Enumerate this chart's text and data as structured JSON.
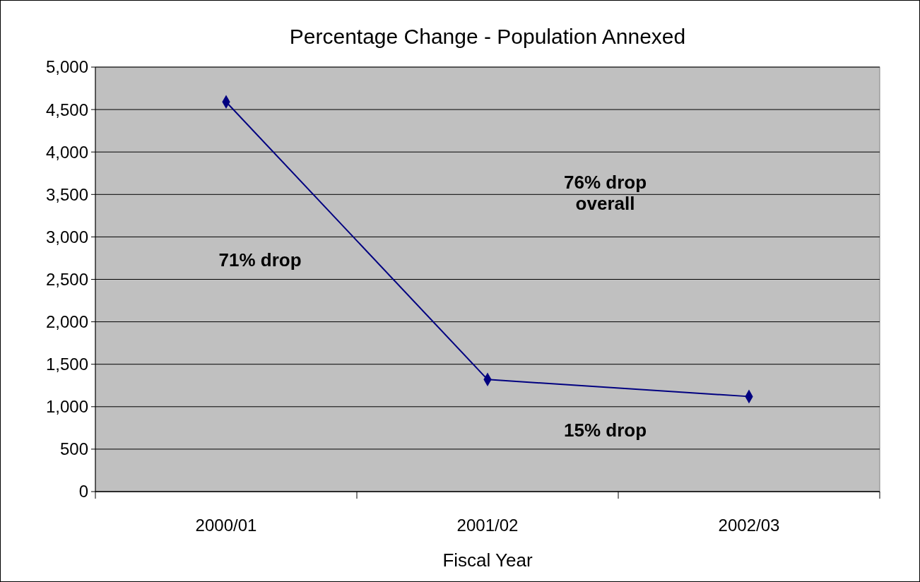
{
  "chart_data": {
    "type": "line",
    "title": "Percentage Change - Population Annexed",
    "xlabel": "Fiscal Year",
    "categories": [
      "2000/01",
      "2001/02",
      "2002/03"
    ],
    "series": [
      {
        "color": "#000080",
        "values": [
          4590,
          1320,
          1120
        ]
      }
    ],
    "ylim": [
      0,
      5000
    ],
    "yticks": [
      {
        "value": 0,
        "label": "0"
      },
      {
        "value": 500,
        "label": "500"
      },
      {
        "value": 1000,
        "label": "1,000"
      },
      {
        "value": 1500,
        "label": "1,500"
      },
      {
        "value": 2000,
        "label": "2,000"
      },
      {
        "value": 2500,
        "label": "2,500"
      },
      {
        "value": 3000,
        "label": "3,000"
      },
      {
        "value": 3500,
        "label": "3,500"
      },
      {
        "value": 4000,
        "label": "4,000"
      },
      {
        "value": 4500,
        "label": "4,500"
      },
      {
        "value": 5000,
        "label": "5,000"
      }
    ],
    "grid": "y",
    "marker": "diamond",
    "line_style": "solid",
    "annotations": [
      "71% drop",
      "76% drop\noverall",
      "15% drop"
    ]
  }
}
